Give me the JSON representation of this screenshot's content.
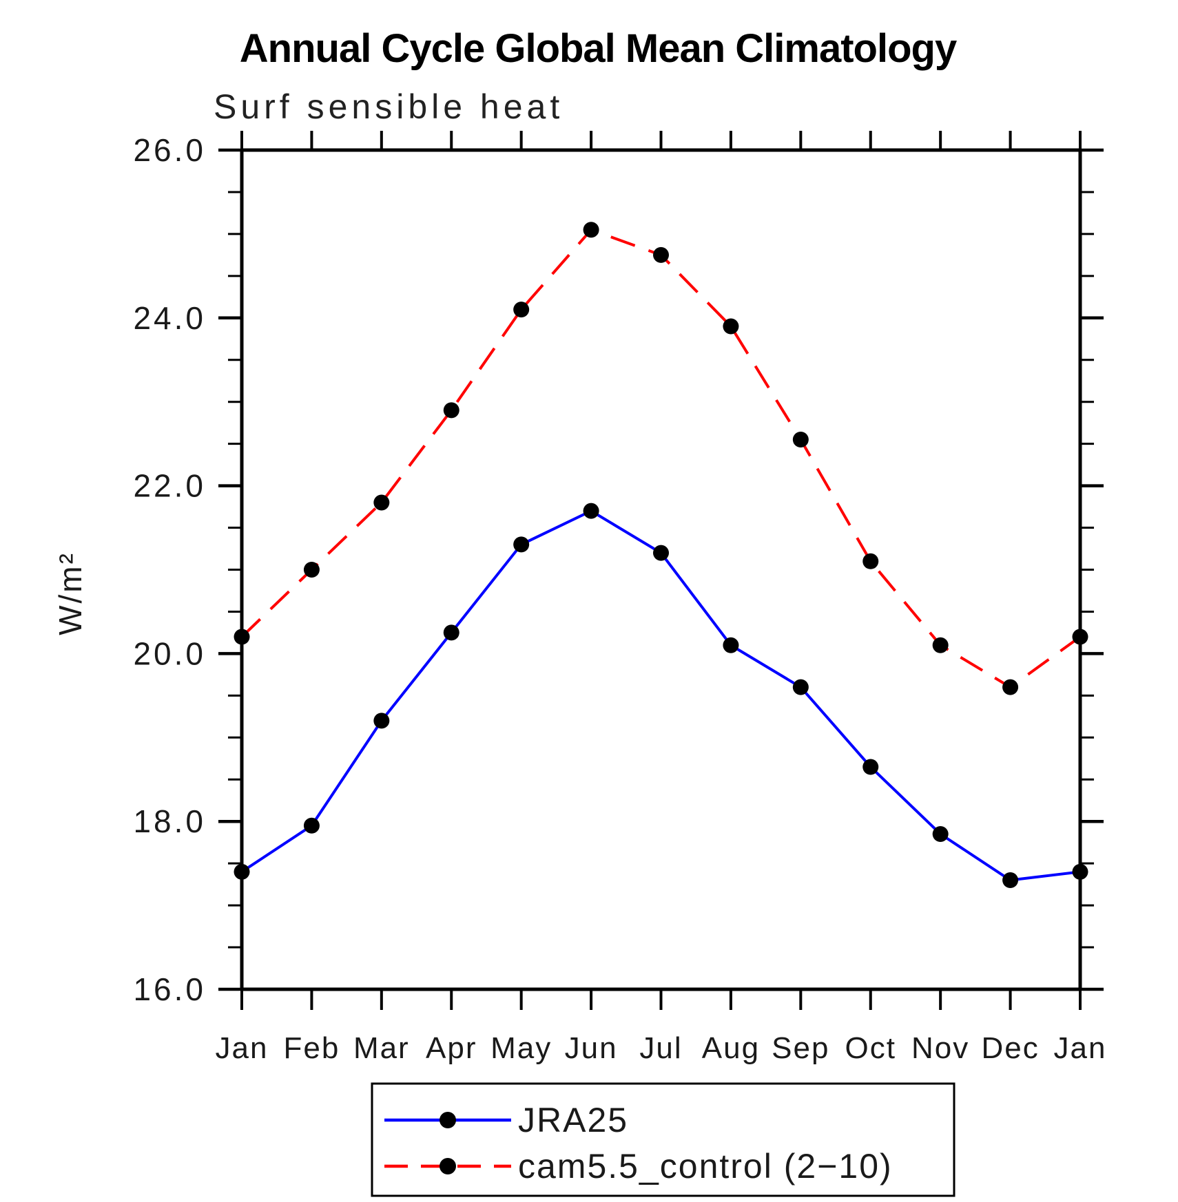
{
  "chart_data": {
    "type": "line",
    "title": "Annual Cycle Global Mean Climatology",
    "subtitle": "Surf sensible heat",
    "ylabel": "W/m²",
    "x_categories": [
      "Jan",
      "Feb",
      "Mar",
      "Apr",
      "May",
      "Jun",
      "Jul",
      "Aug",
      "Sep",
      "Oct",
      "Nov",
      "Dec",
      "Jan"
    ],
    "ylim": [
      16.0,
      26.0
    ],
    "ytick_labels": [
      "16.0",
      "18.0",
      "20.0",
      "22.0",
      "24.0",
      "26.0"
    ],
    "ytick_major_step": 2.0,
    "ytick_minor_step": 0.5,
    "grid": false,
    "legend_position": "bottom",
    "marker_color": "#000000",
    "axis_color": "#000000",
    "series": [
      {
        "name": "JRA25",
        "color": "#0000ff",
        "style": "solid",
        "marker": "circle",
        "values": [
          17.4,
          17.95,
          19.2,
          20.25,
          21.3,
          21.7,
          21.2,
          20.1,
          19.6,
          18.65,
          17.85,
          17.3,
          17.4
        ]
      },
      {
        "name": "cam5.5_control (2−10)",
        "color": "#ff0000",
        "style": "dashed",
        "marker": "circle",
        "values": [
          20.2,
          21.0,
          21.8,
          22.9,
          24.1,
          25.05,
          24.75,
          23.9,
          22.55,
          21.1,
          20.1,
          19.6,
          20.2
        ]
      }
    ]
  }
}
